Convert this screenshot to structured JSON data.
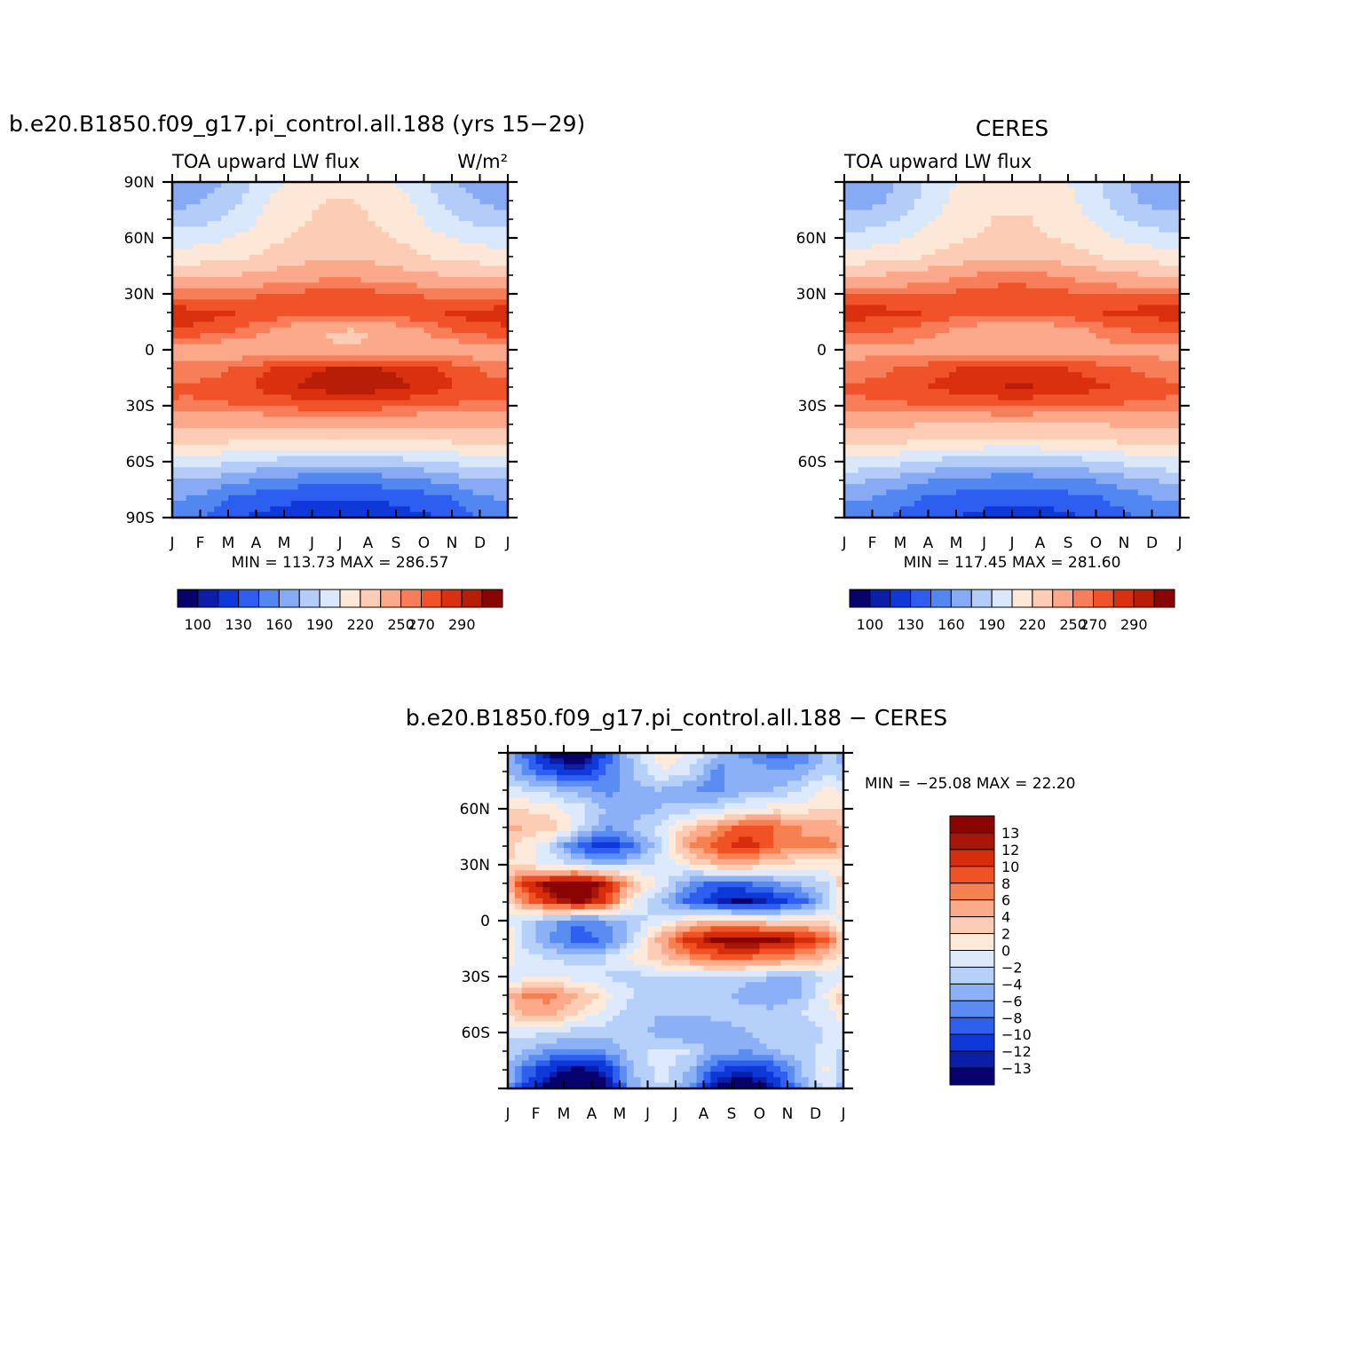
{
  "colors": {
    "abs_palette": [
      "#08006b",
      "#0a1ea8",
      "#0f38d8",
      "#2d5ef0",
      "#5286f0",
      "#86aaf4",
      "#b3cdf8",
      "#dae8fc",
      "#fde8d8",
      "#fdccb4",
      "#fca88a",
      "#f77e58",
      "#f0532a",
      "#d9300f",
      "#b81e06",
      "#8a0404"
    ],
    "diff_palette": [
      "#08006b",
      "#0a1ea8",
      "#0f38d8",
      "#2f5ff0",
      "#5a8cf2",
      "#8cb0f5",
      "#b5d0f9",
      "#ddeafd",
      "#fdeadb",
      "#fccdb3",
      "#fcaa8a",
      "#f78050",
      "#f05226",
      "#d62e0c",
      "#a81608",
      "#8a0404"
    ]
  },
  "panels": {
    "model": {
      "title": "b.e20.B1850.f09_g17.pi_control.all.188 (yrs 15−29)",
      "left_label": "TOA upward LW flux",
      "units": "W/m²",
      "stats": "MIN =  113.73  MAX =  286.57"
    },
    "obs": {
      "title": "CERES",
      "left_label": "TOA upward LW flux",
      "stats": "MIN =  117.45  MAX =  281.60"
    },
    "diff": {
      "title": "b.e20.B1850.f09_g17.pi_control.all.188 − CERES",
      "stats": "MIN = −25.08  MAX =   22.20"
    }
  },
  "chart_data": [
    {
      "type": "heatmap",
      "name": "model",
      "title": "b.e20.B1850.f09_g17.pi_control.all.188 (yrs 15−29)",
      "variable": "TOA upward LW flux",
      "units": "W/m²",
      "x_ticks": [
        "J",
        "F",
        "M",
        "A",
        "M",
        "J",
        "J",
        "A",
        "S",
        "O",
        "N",
        "D",
        "J"
      ],
      "y_ticks": [
        "90N",
        "60N",
        "30N",
        "0",
        "30S",
        "60S",
        "90S"
      ],
      "ylim": [
        -90,
        90
      ],
      "lat": [
        90,
        80,
        70,
        60,
        50,
        40,
        30,
        20,
        10,
        0,
        -10,
        -20,
        -30,
        -40,
        -50,
        -60,
        -70,
        -80,
        -90
      ],
      "months": [
        "J",
        "F",
        "M",
        "A",
        "M",
        "J",
        "J",
        "A",
        "S",
        "O",
        "N",
        "D"
      ],
      "values": [
        [
          165,
          172,
          185,
          200,
          210,
          215,
          215,
          210,
          200,
          185,
          172,
          165
        ],
        [
          170,
          178,
          190,
          205,
          215,
          220,
          220,
          215,
          205,
          190,
          178,
          170
        ],
        [
          182,
          188,
          198,
          210,
          218,
          223,
          223,
          218,
          210,
          198,
          188,
          182
        ],
        [
          198,
          202,
          208,
          216,
          222,
          226,
          226,
          222,
          216,
          208,
          202,
          198
        ],
        [
          212,
          214,
          218,
          224,
          229,
          232,
          232,
          229,
          224,
          218,
          214,
          212
        ],
        [
          232,
          233,
          236,
          240,
          244,
          246,
          246,
          244,
          240,
          236,
          233,
          232
        ],
        [
          255,
          255,
          257,
          260,
          262,
          264,
          264,
          262,
          260,
          257,
          255,
          255
        ],
        [
          275,
          274,
          270,
          268,
          266,
          266,
          266,
          266,
          268,
          270,
          274,
          275
        ],
        [
          268,
          264,
          258,
          248,
          240,
          234,
          233,
          236,
          245,
          255,
          262,
          267
        ],
        [
          242,
          240,
          240,
          238,
          236,
          236,
          236,
          236,
          238,
          240,
          242,
          242
        ],
        [
          254,
          256,
          262,
          270,
          276,
          280,
          281,
          280,
          276,
          270,
          262,
          256
        ],
        [
          262,
          264,
          268,
          274,
          280,
          285,
          286,
          285,
          280,
          274,
          268,
          264
        ],
        [
          258,
          258,
          260,
          262,
          264,
          265,
          265,
          264,
          262,
          260,
          258,
          258
        ],
        [
          238,
          237,
          236,
          236,
          237,
          238,
          238,
          237,
          236,
          236,
          237,
          238
        ],
        [
          222,
          220,
          218,
          216,
          214,
          213,
          213,
          214,
          216,
          218,
          220,
          222
        ],
        [
          198,
          195,
          190,
          186,
          183,
          181,
          181,
          183,
          186,
          190,
          195,
          198
        ],
        [
          175,
          170,
          162,
          156,
          152,
          150,
          150,
          152,
          156,
          162,
          170,
          175
        ],
        [
          160,
          150,
          140,
          135,
          132,
          130,
          130,
          132,
          135,
          140,
          150,
          160
        ],
        [
          150,
          140,
          130,
          125,
          120,
          115,
          114,
          118,
          125,
          130,
          140,
          150
        ]
      ],
      "colorbar": {
        "labels": [
          "100",
          "130",
          "160",
          "190",
          "220",
          "250",
          "270",
          "290"
        ],
        "levels": [
          100,
          115,
          130,
          145,
          160,
          175,
          190,
          205,
          220,
          235,
          250,
          260,
          270,
          280,
          290
        ]
      },
      "stats": {
        "min": 113.73,
        "max": 286.57
      }
    },
    {
      "type": "heatmap",
      "name": "obs",
      "title": "CERES",
      "variable": "TOA upward LW flux",
      "x_ticks": [
        "J",
        "F",
        "M",
        "A",
        "M",
        "J",
        "J",
        "A",
        "S",
        "O",
        "N",
        "D",
        "J"
      ],
      "y_ticks": [
        "60N",
        "30N",
        "0",
        "30S",
        "60S"
      ],
      "ylim": [
        -90,
        90
      ],
      "lat": [
        90,
        80,
        70,
        60,
        50,
        40,
        30,
        20,
        10,
        0,
        -10,
        -20,
        -30,
        -40,
        -50,
        -60,
        -70,
        -80,
        -90
      ],
      "months": [
        "J",
        "F",
        "M",
        "A",
        "M",
        "J",
        "J",
        "A",
        "S",
        "O",
        "N",
        "D"
      ],
      "values": [
        [
          165,
          172,
          185,
          200,
          210,
          215,
          215,
          210,
          200,
          185,
          172,
          165
        ],
        [
          168,
          175,
          188,
          203,
          213,
          218,
          218,
          213,
          203,
          188,
          175,
          168
        ],
        [
          180,
          186,
          196,
          208,
          216,
          221,
          221,
          216,
          208,
          196,
          186,
          180
        ],
        [
          196,
          200,
          206,
          214,
          220,
          224,
          224,
          220,
          214,
          206,
          200,
          196
        ],
        [
          212,
          214,
          218,
          224,
          230,
          234,
          234,
          230,
          224,
          218,
          214,
          212
        ],
        [
          234,
          236,
          240,
          245,
          250,
          253,
          253,
          250,
          245,
          240,
          236,
          234
        ],
        [
          258,
          258,
          259,
          261,
          264,
          266,
          266,
          264,
          261,
          259,
          258,
          258
        ],
        [
          275,
          274,
          272,
          268,
          264,
          262,
          262,
          264,
          268,
          272,
          274,
          275
        ],
        [
          262,
          260,
          256,
          250,
          244,
          240,
          240,
          242,
          248,
          256,
          260,
          262
        ],
        [
          245,
          245,
          245,
          244,
          243,
          242,
          242,
          243,
          244,
          245,
          245,
          245
        ],
        [
          255,
          258,
          263,
          268,
          272,
          274,
          274,
          272,
          268,
          263,
          258,
          255
        ],
        [
          262,
          264,
          268,
          272,
          276,
          280,
          281,
          278,
          274,
          270,
          266,
          262
        ],
        [
          258,
          258,
          259,
          260,
          261,
          262,
          262,
          261,
          260,
          259,
          258,
          258
        ],
        [
          240,
          238,
          236,
          235,
          235,
          236,
          236,
          235,
          235,
          236,
          238,
          240
        ],
        [
          224,
          222,
          218,
          215,
          213,
          212,
          212,
          213,
          215,
          218,
          222,
          224
        ],
        [
          200,
          196,
          190,
          186,
          183,
          182,
          182,
          183,
          186,
          190,
          196,
          200
        ],
        [
          178,
          172,
          164,
          158,
          154,
          152,
          152,
          154,
          158,
          164,
          172,
          178
        ],
        [
          162,
          155,
          146,
          140,
          137,
          135,
          135,
          137,
          140,
          146,
          155,
          162
        ],
        [
          152,
          145,
          138,
          132,
          127,
          122,
          120,
          124,
          130,
          138,
          145,
          152
        ]
      ],
      "colorbar": {
        "labels": [
          "100",
          "130",
          "160",
          "190",
          "220",
          "250",
          "270",
          "290"
        ],
        "levels": [
          100,
          115,
          130,
          145,
          160,
          175,
          190,
          205,
          220,
          235,
          250,
          260,
          270,
          280,
          290
        ]
      },
      "stats": {
        "min": 117.45,
        "max": 281.6
      }
    },
    {
      "type": "heatmap",
      "name": "difference",
      "title": "b.e20.B1850.f09_g17.pi_control.all.188 − CERES",
      "x_ticks": [
        "J",
        "F",
        "M",
        "A",
        "M",
        "J",
        "J",
        "A",
        "S",
        "O",
        "N",
        "D",
        "J"
      ],
      "y_ticks": [
        "60N",
        "30N",
        "0",
        "30S",
        "60S"
      ],
      "ylim": [
        -90,
        90
      ],
      "lat": [
        90,
        80,
        70,
        60,
        50,
        40,
        30,
        20,
        10,
        0,
        -10,
        -20,
        -30,
        -40,
        -50,
        -60,
        -70,
        -80,
        -90
      ],
      "months": [
        "J",
        "F",
        "M",
        "A",
        "M",
        "J",
        "J",
        "A",
        "S",
        "O",
        "N",
        "D"
      ],
      "values": [
        [
          -8,
          -14,
          -16,
          -10,
          -3,
          2,
          0,
          -4,
          -7,
          -9,
          -8,
          -3
        ],
        [
          -6,
          -10,
          -12,
          -8,
          -4,
          0,
          -2,
          -7,
          -4,
          -6,
          -5,
          -2
        ],
        [
          -2,
          -3,
          -5,
          -7,
          -5,
          -4,
          -6,
          -7,
          -4,
          -4,
          -2,
          1
        ],
        [
          2,
          1,
          -1,
          -4,
          -5,
          -4,
          -3,
          -2,
          0,
          1,
          1,
          2
        ],
        [
          4,
          3,
          -1,
          -6,
          -4,
          -1,
          3,
          6,
          9,
          8,
          6,
          5
        ],
        [
          1,
          -2,
          -9,
          -12,
          -8,
          -2,
          6,
          9,
          12,
          8,
          6,
          7
        ],
        [
          2,
          -1,
          -2,
          -4,
          -3,
          -1,
          1,
          4,
          4,
          2,
          1,
          1
        ],
        [
          10,
          14,
          16,
          12,
          4,
          -1,
          -6,
          -9,
          -8,
          -6,
          -4,
          -2
        ],
        [
          6,
          11,
          14,
          10,
          0,
          -4,
          -9,
          -12,
          -14,
          -12,
          -9,
          -3
        ],
        [
          -2,
          -5,
          -8,
          -6,
          -3,
          -1,
          2,
          4,
          3,
          2,
          2,
          1
        ],
        [
          -3,
          -6,
          -9,
          -8,
          -2,
          5,
          11,
          14,
          15,
          14,
          12,
          8
        ],
        [
          -1,
          -2,
          -3,
          -2,
          1,
          3,
          6,
          8,
          8,
          7,
          5,
          3
        ],
        [
          -1,
          0,
          -1,
          -2,
          -3,
          -2,
          -2,
          -2,
          -3,
          -4,
          -4,
          -2
        ],
        [
          6,
          7,
          4,
          1,
          -2,
          -4,
          -3,
          -3,
          -5,
          -6,
          -4,
          1
        ],
        [
          4,
          5,
          2,
          -1,
          -3,
          -4,
          -4,
          -3,
          -3,
          -3,
          -2,
          -1
        ],
        [
          -1,
          -2,
          -3,
          -3,
          -3,
          -5,
          -6,
          -6,
          -4,
          -3,
          -3,
          -2
        ],
        [
          -4,
          -6,
          -7,
          -6,
          -3,
          -1,
          -2,
          -5,
          -6,
          -4,
          -3,
          -1
        ],
        [
          -8,
          -12,
          -14,
          -12,
          -4,
          -1,
          -4,
          -10,
          -12,
          -10,
          -4,
          1
        ],
        [
          -10,
          -14,
          -15,
          -14,
          -5,
          -2,
          -6,
          -14,
          -15,
          -13,
          -6,
          -1
        ]
      ],
      "colorbar": {
        "labels": [
          "13",
          "12",
          "10",
          "8",
          "6",
          "4",
          "2",
          "0",
          "−2",
          "−4",
          "−6",
          "−8",
          "−10",
          "−12",
          "−13"
        ],
        "levels": [
          -13,
          -12,
          -10,
          -8,
          -6,
          -4,
          -2,
          0,
          2,
          4,
          6,
          8,
          10,
          12,
          13
        ]
      },
      "stats": {
        "min": -25.08,
        "max": 22.2
      }
    }
  ]
}
